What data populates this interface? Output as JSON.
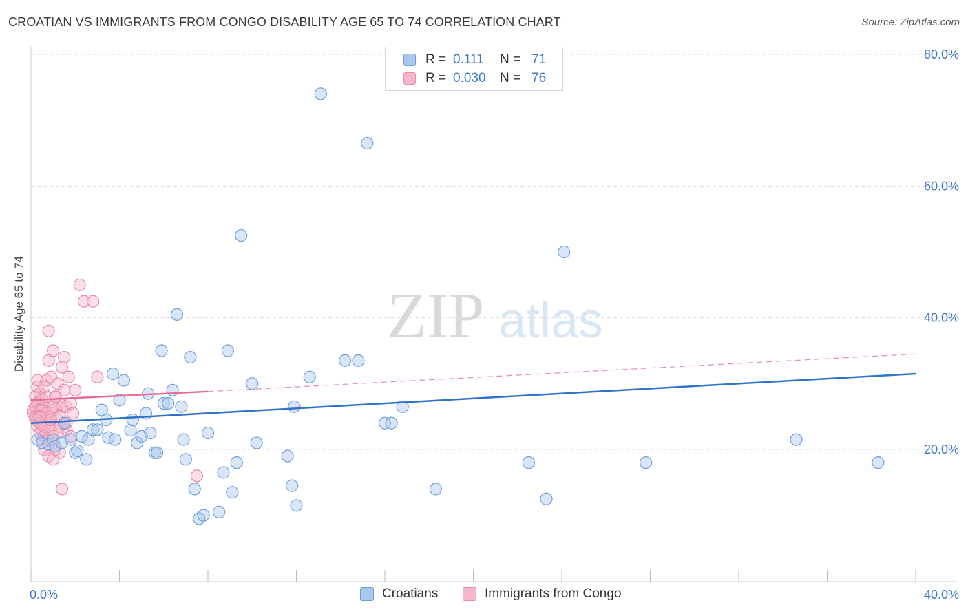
{
  "title": "CROATIAN VS IMMIGRANTS FROM CONGO DISABILITY AGE 65 TO 74 CORRELATION CHART",
  "source": "Source: ZipAtlas.com",
  "watermark": {
    "zip": "ZIP",
    "atlas": "atlas"
  },
  "legend_top": {
    "rows": [
      {
        "r_label": "R =",
        "r_value": "0.111",
        "n_label": "N =",
        "n_value": "71"
      },
      {
        "r_label": "R =",
        "r_value": "0.030",
        "n_label": "N =",
        "n_value": "76"
      }
    ]
  },
  "legend_bottom": {
    "series1": "Croatians",
    "series2": "Immigrants from Congo"
  },
  "colors": {
    "blue_fill": "#aac8ee",
    "blue_stroke": "#6f9fdb",
    "blue_line": "#2e72c9",
    "pink_fill": "#f5b7ca",
    "pink_stroke": "#e88aa8",
    "pink_line": "#e86c94",
    "grid": "#dddddd",
    "tick_text": "#3d7acb"
  },
  "chart_data": {
    "type": "scatter",
    "title": "CROATIAN VS IMMIGRANTS FROM CONGO DISABILITY AGE 65 TO 74 CORRELATION CHART",
    "xlabel": "",
    "ylabel": "Disability Age 65 to 74",
    "xlim": [
      0,
      40
    ],
    "ylim": [
      0,
      82
    ],
    "x_tick_labels": [
      "0.0%",
      "40.0%"
    ],
    "y_ticks": [
      20,
      40,
      60,
      80
    ],
    "y_tick_labels": [
      "20.0%",
      "40.0%",
      "60.0%",
      "80.0%"
    ],
    "grid": true,
    "series": [
      {
        "name": "Croatians",
        "R": 0.111,
        "N": 71,
        "trend": {
          "x": [
            0,
            40
          ],
          "y": [
            24.0,
            31.5
          ],
          "style": "solid"
        },
        "x": [
          0.3,
          0.5,
          0.8,
          1.0,
          1.1,
          1.4,
          1.5,
          1.8,
          2.0,
          2.1,
          2.3,
          2.5,
          2.6,
          2.8,
          3.0,
          3.2,
          3.4,
          3.5,
          3.7,
          3.8,
          4.0,
          4.2,
          4.5,
          4.6,
          4.8,
          5.0,
          5.2,
          5.3,
          5.6,
          5.7,
          5.9,
          6.0,
          6.2,
          6.4,
          6.6,
          6.9,
          7.0,
          7.2,
          7.4,
          7.6,
          7.8,
          8.0,
          8.5,
          8.7,
          9.1,
          9.3,
          9.5,
          10.0,
          10.2,
          11.6,
          11.8,
          12.0,
          12.6,
          13.1,
          14.2,
          14.8,
          15.2,
          16.0,
          16.3,
          22.5,
          23.3,
          24.1,
          27.8,
          38.3,
          34.6,
          18.3,
          16.8,
          11.9,
          8.9,
          6.8,
          5.4
        ],
        "y": [
          21.5,
          21.0,
          20.8,
          21.5,
          20.5,
          21.0,
          24.0,
          21.5,
          19.5,
          19.8,
          22.0,
          18.5,
          21.5,
          23.0,
          23.0,
          26.0,
          24.5,
          21.8,
          31.5,
          21.5,
          27.5,
          30.5,
          22.9,
          24.5,
          21.0,
          22.0,
          25.5,
          28.5,
          19.5,
          19.5,
          35.0,
          27.0,
          27.0,
          29.0,
          40.5,
          21.5,
          18.5,
          34.0,
          14.0,
          9.5,
          10.0,
          22.5,
          10.5,
          16.5,
          13.5,
          18.0,
          52.5,
          30.0,
          21.0,
          19.0,
          14.5,
          11.5,
          31.0,
          74.0,
          33.5,
          33.5,
          66.5,
          24.0,
          24.0,
          18.0,
          12.5,
          50.0,
          18.0,
          18.0,
          21.5,
          14.0,
          26.5,
          26.5,
          35.0,
          26.5,
          22.5
        ]
      },
      {
        "name": "Immigrants from Congo",
        "R": 0.03,
        "N": 76,
        "trend": {
          "x": [
            0,
            8
          ],
          "y": [
            27.5,
            28.8
          ],
          "style": "solid",
          "dashed_extension": {
            "x": [
              8,
              40
            ],
            "y": [
              28.8,
              34.5
            ]
          }
        },
        "x": [
          0.1,
          0.1,
          0.2,
          0.2,
          0.2,
          0.3,
          0.3,
          0.3,
          0.3,
          0.3,
          0.4,
          0.4,
          0.4,
          0.4,
          0.5,
          0.5,
          0.5,
          0.5,
          0.6,
          0.6,
          0.6,
          0.6,
          0.7,
          0.7,
          0.7,
          0.8,
          0.8,
          0.8,
          0.8,
          0.9,
          0.9,
          0.9,
          1.0,
          1.0,
          1.0,
          1.0,
          1.1,
          1.1,
          1.2,
          1.2,
          1.3,
          1.3,
          1.3,
          1.4,
          1.4,
          1.5,
          1.5,
          1.5,
          1.6,
          1.6,
          1.7,
          1.8,
          1.8,
          1.9,
          2.0,
          2.2,
          2.4,
          2.8,
          3.0,
          7.5,
          0.2,
          0.3,
          0.4,
          0.5,
          0.6,
          0.7,
          0.8,
          0.9,
          1.0,
          1.1,
          1.2,
          1.3,
          1.4,
          1.6,
          0.4,
          0.6
        ],
        "y": [
          25.5,
          26.0,
          24.5,
          26.5,
          28.0,
          23.5,
          25.0,
          27.0,
          29.5,
          30.5,
          22.5,
          24.5,
          26.0,
          28.5,
          21.5,
          23.0,
          25.0,
          27.5,
          20.0,
          22.0,
          24.0,
          26.5,
          30.5,
          25.0,
          28.0,
          19.0,
          21.5,
          24.0,
          33.5,
          23.0,
          25.5,
          31.0,
          18.5,
          22.0,
          26.0,
          35.0,
          20.0,
          28.0,
          30.0,
          24.5,
          19.5,
          23.5,
          27.0,
          26.5,
          32.5,
          24.0,
          29.0,
          34.0,
          26.5,
          23.0,
          31.0,
          22.0,
          27.0,
          25.5,
          29.0,
          45.0,
          42.5,
          42.5,
          31.0,
          16.0,
          25.0,
          24.5,
          24.0,
          26.0,
          23.5,
          25.5,
          38.0,
          24.5,
          26.5,
          28.0,
          22.5,
          25.0,
          14.0,
          24.0,
          25.0,
          29.5
        ]
      }
    ]
  }
}
